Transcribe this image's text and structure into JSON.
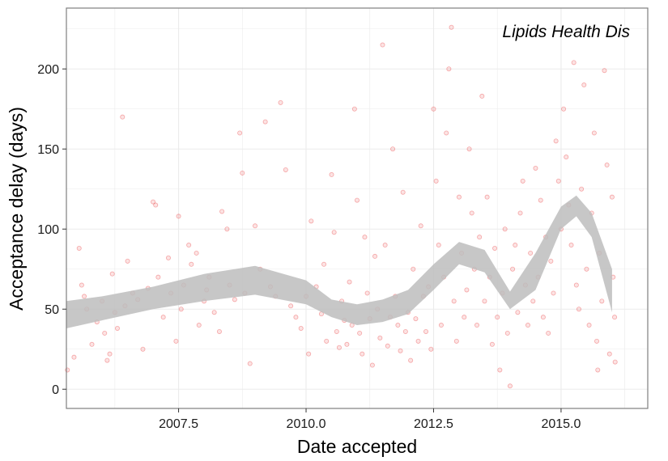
{
  "chart_data": {
    "type": "scatter",
    "annotation": "Lipids Health Dis",
    "xlabel": "Date accepted",
    "ylabel": "Acceptance delay (days)",
    "xlim": [
      2005.3,
      2016.7
    ],
    "ylim": [
      -12,
      238
    ],
    "x_ticks": [
      2007.5,
      2010.0,
      2012.5,
      2015.0
    ],
    "x_tick_labels": [
      "2007.5",
      "2010.0",
      "2012.5",
      "2015.0"
    ],
    "y_ticks": [
      0,
      50,
      100,
      150,
      200
    ],
    "y_tick_labels": [
      "0",
      "50",
      "100",
      "150",
      "200"
    ],
    "grid": true,
    "legend": "none",
    "colors": {
      "points": "#e41a1c",
      "smooth_band": "#bdbdbd",
      "grid": "#ebebeb",
      "panel_border": "#7f7f7f"
    },
    "smooth": {
      "x": [
        2005.3,
        2006.0,
        2007.0,
        2008.0,
        2009.0,
        2010.0,
        2010.5,
        2011.0,
        2011.5,
        2012.0,
        2012.5,
        2013.0,
        2013.5,
        2014.0,
        2014.5,
        2015.0,
        2015.3,
        2015.6,
        2016.0
      ],
      "lower": [
        38,
        43,
        50,
        55,
        59,
        53,
        45,
        40,
        42,
        47,
        62,
        78,
        73,
        50,
        62,
        100,
        108,
        95,
        48
      ],
      "upper": [
        55,
        58,
        64,
        72,
        77,
        68,
        56,
        53,
        56,
        62,
        78,
        92,
        87,
        61,
        85,
        114,
        121,
        110,
        75
      ]
    },
    "points": [
      [
        2005.32,
        12
      ],
      [
        2005.45,
        20
      ],
      [
        2005.55,
        88
      ],
      [
        2005.6,
        65
      ],
      [
        2005.65,
        58
      ],
      [
        2005.7,
        50
      ],
      [
        2005.8,
        28
      ],
      [
        2005.9,
        42
      ],
      [
        2006.0,
        55
      ],
      [
        2006.05,
        35
      ],
      [
        2006.1,
        18
      ],
      [
        2006.15,
        22
      ],
      [
        2006.2,
        72
      ],
      [
        2006.25,
        48
      ],
      [
        2006.3,
        38
      ],
      [
        2006.4,
        170
      ],
      [
        2006.45,
        52
      ],
      [
        2006.5,
        80
      ],
      [
        2006.6,
        60
      ],
      [
        2006.7,
        56
      ],
      [
        2006.8,
        25
      ],
      [
        2006.9,
        63
      ],
      [
        2007.0,
        117
      ],
      [
        2007.05,
        115
      ],
      [
        2007.1,
        70
      ],
      [
        2007.2,
        45
      ],
      [
        2007.3,
        82
      ],
      [
        2007.35,
        60
      ],
      [
        2007.45,
        30
      ],
      [
        2007.5,
        108
      ],
      [
        2007.55,
        50
      ],
      [
        2007.6,
        65
      ],
      [
        2007.7,
        90
      ],
      [
        2007.75,
        78
      ],
      [
        2007.85,
        85
      ],
      [
        2007.9,
        40
      ],
      [
        2008.0,
        55
      ],
      [
        2008.05,
        62
      ],
      [
        2008.1,
        70
      ],
      [
        2008.2,
        48
      ],
      [
        2008.3,
        36
      ],
      [
        2008.35,
        111
      ],
      [
        2008.45,
        100
      ],
      [
        2008.5,
        65
      ],
      [
        2008.6,
        56
      ],
      [
        2008.7,
        160
      ],
      [
        2008.75,
        135
      ],
      [
        2008.8,
        60
      ],
      [
        2008.9,
        16
      ],
      [
        2009.0,
        102
      ],
      [
        2009.1,
        75
      ],
      [
        2009.2,
        167
      ],
      [
        2009.3,
        64
      ],
      [
        2009.4,
        58
      ],
      [
        2009.5,
        179
      ],
      [
        2009.6,
        137
      ],
      [
        2009.7,
        52
      ],
      [
        2009.8,
        45
      ],
      [
        2009.9,
        38
      ],
      [
        2010.0,
        58
      ],
      [
        2010.05,
        22
      ],
      [
        2010.1,
        105
      ],
      [
        2010.2,
        64
      ],
      [
        2010.3,
        47
      ],
      [
        2010.35,
        78
      ],
      [
        2010.4,
        30
      ],
      [
        2010.5,
        134
      ],
      [
        2010.55,
        98
      ],
      [
        2010.6,
        36
      ],
      [
        2010.65,
        26
      ],
      [
        2010.7,
        55
      ],
      [
        2010.75,
        43
      ],
      [
        2010.8,
        28
      ],
      [
        2010.85,
        67
      ],
      [
        2010.9,
        40
      ],
      [
        2010.95,
        175
      ],
      [
        2011.0,
        118
      ],
      [
        2011.05,
        35
      ],
      [
        2011.1,
        22
      ],
      [
        2011.15,
        95
      ],
      [
        2011.2,
        60
      ],
      [
        2011.25,
        44
      ],
      [
        2011.3,
        15
      ],
      [
        2011.35,
        83
      ],
      [
        2011.4,
        50
      ],
      [
        2011.45,
        32
      ],
      [
        2011.5,
        215
      ],
      [
        2011.55,
        90
      ],
      [
        2011.6,
        27
      ],
      [
        2011.65,
        45
      ],
      [
        2011.7,
        150
      ],
      [
        2011.75,
        58
      ],
      [
        2011.8,
        40
      ],
      [
        2011.85,
        24
      ],
      [
        2011.9,
        123
      ],
      [
        2011.95,
        36
      ],
      [
        2012.0,
        48
      ],
      [
        2012.05,
        18
      ],
      [
        2012.1,
        75
      ],
      [
        2012.15,
        44
      ],
      [
        2012.2,
        30
      ],
      [
        2012.25,
        102
      ],
      [
        2012.3,
        58
      ],
      [
        2012.35,
        36
      ],
      [
        2012.4,
        64
      ],
      [
        2012.45,
        25
      ],
      [
        2012.5,
        175
      ],
      [
        2012.55,
        130
      ],
      [
        2012.6,
        90
      ],
      [
        2012.65,
        40
      ],
      [
        2012.7,
        70
      ],
      [
        2012.75,
        160
      ],
      [
        2012.8,
        200
      ],
      [
        2012.85,
        226
      ],
      [
        2012.9,
        55
      ],
      [
        2012.95,
        30
      ],
      [
        2013.0,
        120
      ],
      [
        2013.05,
        85
      ],
      [
        2013.1,
        45
      ],
      [
        2013.15,
        62
      ],
      [
        2013.2,
        150
      ],
      [
        2013.25,
        110
      ],
      [
        2013.3,
        75
      ],
      [
        2013.35,
        40
      ],
      [
        2013.4,
        95
      ],
      [
        2013.45,
        183
      ],
      [
        2013.5,
        55
      ],
      [
        2013.55,
        120
      ],
      [
        2013.6,
        70
      ],
      [
        2013.65,
        28
      ],
      [
        2013.7,
        88
      ],
      [
        2013.75,
        45
      ],
      [
        2013.8,
        12
      ],
      [
        2013.85,
        60
      ],
      [
        2013.9,
        100
      ],
      [
        2013.95,
        35
      ],
      [
        2014.0,
        2
      ],
      [
        2014.05,
        75
      ],
      [
        2014.1,
        90
      ],
      [
        2014.15,
        48
      ],
      [
        2014.2,
        110
      ],
      [
        2014.25,
        130
      ],
      [
        2014.3,
        65
      ],
      [
        2014.35,
        40
      ],
      [
        2014.4,
        85
      ],
      [
        2014.45,
        55
      ],
      [
        2014.5,
        138
      ],
      [
        2014.55,
        70
      ],
      [
        2014.6,
        118
      ],
      [
        2014.65,
        45
      ],
      [
        2014.7,
        95
      ],
      [
        2014.75,
        35
      ],
      [
        2014.8,
        80
      ],
      [
        2014.85,
        60
      ],
      [
        2014.9,
        155
      ],
      [
        2014.95,
        130
      ],
      [
        2015.0,
        100
      ],
      [
        2015.05,
        175
      ],
      [
        2015.1,
        145
      ],
      [
        2015.15,
        115
      ],
      [
        2015.2,
        90
      ],
      [
        2015.25,
        204
      ],
      [
        2015.3,
        65
      ],
      [
        2015.35,
        50
      ],
      [
        2015.4,
        125
      ],
      [
        2015.45,
        190
      ],
      [
        2015.5,
        75
      ],
      [
        2015.55,
        40
      ],
      [
        2015.6,
        110
      ],
      [
        2015.65,
        160
      ],
      [
        2015.7,
        30
      ],
      [
        2015.72,
        12
      ],
      [
        2015.75,
        85
      ],
      [
        2015.8,
        55
      ],
      [
        2015.85,
        199
      ],
      [
        2015.9,
        140
      ],
      [
        2015.95,
        22
      ],
      [
        2016.0,
        120
      ],
      [
        2016.02,
        70
      ],
      [
        2016.05,
        45
      ],
      [
        2016.06,
        17
      ]
    ]
  }
}
